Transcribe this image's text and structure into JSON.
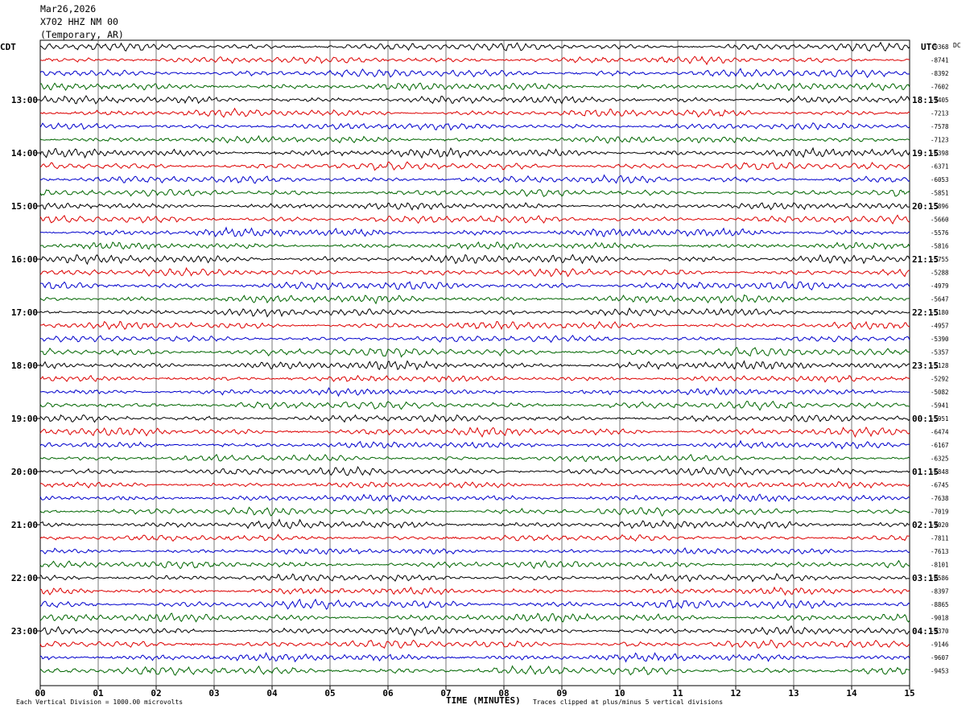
{
  "header": {
    "date": "Mar26,2026",
    "station": "X702 HHZ NM 00",
    "network": "(Temporary, AR)"
  },
  "chart_data": {
    "type": "line",
    "title": "Mar26,2026 X702 HHZ NM 00 (Temporary, AR)",
    "xlabel": "TIME (MINUTES)",
    "xlim": [
      0,
      15
    ],
    "x_ticks": [
      "00",
      "01",
      "02",
      "03",
      "04",
      "05",
      "06",
      "07",
      "08",
      "09",
      "10",
      "11",
      "12",
      "13",
      "14",
      "15"
    ],
    "left_axis_label": "CDT",
    "right_axis_label": "UTC",
    "dc_label": "DC",
    "trace_interval_minutes": 15,
    "trace_colors": [
      "#000000",
      "#dd0000",
      "#0000cc",
      "#006600"
    ],
    "left_time_labels": [
      "13:00",
      "14:00",
      "15:00",
      "16:00",
      "17:00",
      "18:00",
      "19:00",
      "20:00",
      "21:00",
      "22:00",
      "23:00"
    ],
    "right_time_labels": [
      "18:15",
      "19:15",
      "20:15",
      "21:15",
      "22:15",
      "23:15",
      "00:15",
      "01:15",
      "02:15",
      "03:15",
      "04:15"
    ],
    "dc_offsets": [
      "-9368",
      "-8741",
      "-8392",
      "-7602",
      "-7405",
      "-7213",
      "-7578",
      "-7123",
      "-6398",
      "-6371",
      "-6053",
      "-5851",
      "-5896",
      "-5660",
      "-5576",
      "-5816",
      "-5755",
      "-5288",
      "-4979",
      "-5647",
      "-5180",
      "-4957",
      "-5390",
      "-5357",
      "-5128",
      "-5292",
      "-5082",
      "-5941",
      "-5951",
      "-6474",
      "-6167",
      "-6325",
      "-6848",
      "-6745",
      "-7638",
      "-7019",
      "-7020",
      "-7811",
      "-7613",
      "-8101",
      "-8586",
      "-8397",
      "-8865",
      "-9018",
      "-9370",
      "-9146",
      "-9607",
      "-9453"
    ],
    "scale_note": "Each Vertical Division = 1000.00 microvolts",
    "clip_note": "Traces clipped at plus/minus 5 vertical divisions"
  }
}
